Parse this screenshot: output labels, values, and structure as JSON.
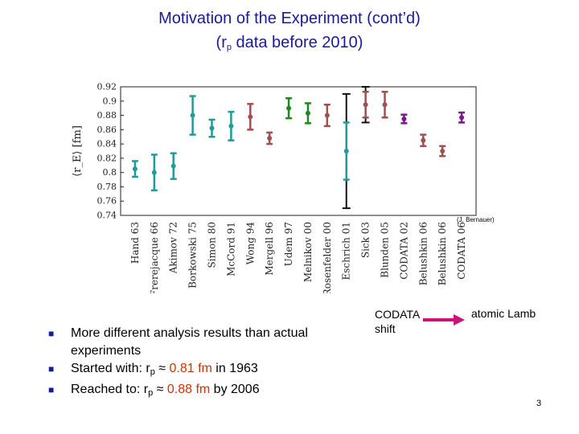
{
  "slide": {
    "title_line1": "Motivation of the Experiment (cont’d)",
    "title_line2_pre": "(r",
    "title_line2_sub": "p",
    "title_line2_post": " data before 2010)",
    "credit": "(J. Bernauer)",
    "codata_text": "CODATA shift",
    "lamb_text": "atomic Lamb",
    "page_number": "3"
  },
  "bullets": {
    "b1_line1": "More different analysis results than actual",
    "b1_line2": "experiments",
    "b2_pre": "Started with:  r",
    "b2_sub": "p",
    "b2_mid": " ≈ ",
    "b2_val": "0.81 fm",
    "b2_post": "   in   1963",
    "b3_pre": "Reached to:   r",
    "b3_sub": "p",
    "b3_mid": " ≈ ",
    "b3_val": "0.88 fm",
    "b3_post": "    by  2006"
  },
  "colors": {
    "teal": "#1e9b9b",
    "green": "#1a8a1a",
    "brown": "#a05050",
    "black": "#111111",
    "purple": "#7a1a8a",
    "title": "#1a1a99",
    "highlight": "#cc3300",
    "arrow": "#cc1177"
  },
  "chart_data": {
    "type": "scatter",
    "ylabel": "⟨r_E⟩ [fm]",
    "ylim": [
      0.74,
      0.92
    ],
    "yticks": [
      "0.74",
      "0.76",
      "0.78",
      "0.8",
      "0.82",
      "0.84",
      "0.86",
      "0.88",
      "0.9",
      "0.92"
    ],
    "grid": false,
    "points": [
      {
        "label": "Hand 63",
        "y": 0.805,
        "err": 0.011,
        "color": "teal"
      },
      {
        "label": "Frerejacque 66",
        "y": 0.8,
        "err": 0.025,
        "color": "teal"
      },
      {
        "label": "Akimov 72",
        "y": 0.809,
        "err": 0.018,
        "color": "teal"
      },
      {
        "label": "Borkowski 75",
        "y": 0.88,
        "err": 0.027,
        "color": "teal"
      },
      {
        "label": "Simon 80",
        "y": 0.862,
        "err": 0.012,
        "color": "teal"
      },
      {
        "label": "McCord 91",
        "y": 0.865,
        "err": 0.02,
        "color": "teal"
      },
      {
        "label": "Wong 94",
        "y": 0.878,
        "err": 0.018,
        "color": "brown"
      },
      {
        "label": "Mergell 96",
        "y": 0.848,
        "err": 0.008,
        "color": "brown"
      },
      {
        "label": "Udem 97",
        "y": 0.89,
        "err": 0.014,
        "color": "green"
      },
      {
        "label": "Melnikov 00",
        "y": 0.883,
        "err": 0.014,
        "color": "green"
      },
      {
        "label": "Rosenfelder 00",
        "y": 0.88,
        "err": 0.015,
        "color": "brown"
      },
      {
        "label": "Eschrich 01",
        "y": 0.83,
        "err": 0.04,
        "color": "teal"
      },
      {
        "label": "Sick 03",
        "y": 0.895,
        "err": 0.018,
        "color": "brown"
      },
      {
        "label": "Blunden 05",
        "y": 0.895,
        "err": 0.018,
        "color": "brown"
      },
      {
        "label": "CODATA 02",
        "y": 0.875,
        "err": 0.006,
        "color": "purple"
      },
      {
        "label": "Belushkin 06",
        "y": 0.845,
        "err": 0.008,
        "color": "brown"
      },
      {
        "label": "Belushkin 06",
        "y": 0.83,
        "err": 0.007,
        "color": "brown"
      },
      {
        "label": "CODATA 06",
        "y": 0.877,
        "err": 0.007,
        "color": "purple"
      }
    ],
    "black_bars": [
      {
        "x_after": "Eschrich 01",
        "low": 0.75,
        "high": 0.91
      },
      {
        "x_after": "Sick 03",
        "low": 0.87,
        "high": 0.92
      }
    ]
  }
}
